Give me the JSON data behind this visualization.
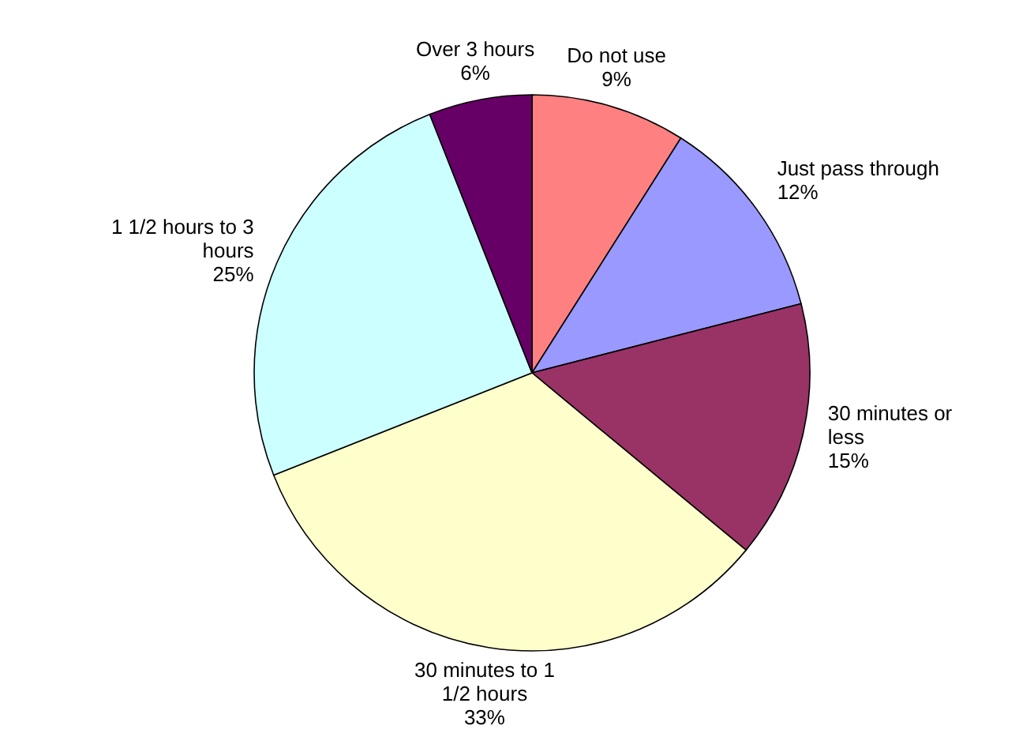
{
  "chart_data": {
    "type": "pie",
    "categories": [
      "Do not use",
      "Just pass through",
      "30 minutes or less",
      "30 minutes to 1 1/2 hours",
      "1 1/2 hours to 3 hours",
      "Over 3 hours"
    ],
    "values": [
      9,
      12,
      15,
      33,
      25,
      6
    ],
    "value_labels": [
      "9%",
      "12%",
      "15%",
      "33%",
      "25%",
      "6%"
    ],
    "colors": [
      "#ff8080",
      "#9999ff",
      "#993366",
      "#ffffcc",
      "#ccffff",
      "#660066"
    ]
  }
}
